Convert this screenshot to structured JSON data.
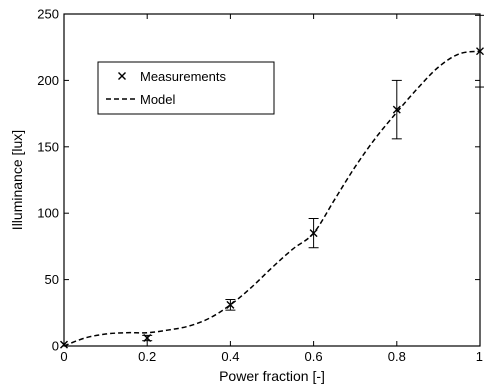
{
  "chart_data": {
    "type": "line",
    "xlabel": "Power fraction [-]",
    "ylabel": "Illuminance [lux]",
    "xlim": [
      0,
      1
    ],
    "ylim": [
      0,
      250
    ],
    "xticks": [
      0,
      0.2,
      0.4,
      0.6,
      0.8,
      1
    ],
    "xtick_labels": [
      "0",
      "0.2",
      "0.4",
      "0.6",
      "0.8",
      "1"
    ],
    "yticks": [
      0,
      50,
      100,
      150,
      200,
      250
    ],
    "ytick_labels": [
      "0",
      "50",
      "100",
      "150",
      "200",
      "250"
    ],
    "grid": false,
    "legend_position": "upper-left",
    "series": [
      {
        "name": "Measurements",
        "style": "markers-with-errorbars",
        "marker": "x",
        "x": [
          0,
          0.2,
          0.4,
          0.6,
          0.8,
          1.0
        ],
        "y": [
          1,
          6,
          31,
          85,
          178,
          222
        ],
        "err": [
          1,
          2,
          4,
          11,
          22,
          27
        ]
      },
      {
        "name": "Model",
        "style": "dashed-line",
        "x": [
          0,
          0.05,
          0.1,
          0.15,
          0.2,
          0.25,
          0.3,
          0.35,
          0.4,
          0.45,
          0.5,
          0.55,
          0.6,
          0.65,
          0.7,
          0.75,
          0.8,
          0.85,
          0.9,
          0.95,
          1.0
        ],
        "y": [
          0,
          6,
          9,
          10,
          10,
          12,
          15,
          21,
          31,
          44,
          59,
          73,
          85,
          110,
          135,
          157,
          176,
          194,
          210,
          220,
          222
        ]
      }
    ]
  }
}
